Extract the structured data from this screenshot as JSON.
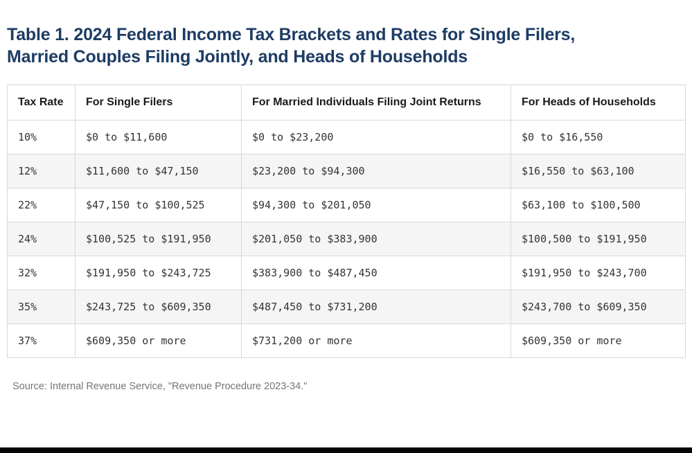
{
  "header": {
    "title_lines": [
      "Table 1. 2024 Federal Income Tax Brackets and Rates for Single Filers,",
      "Married Couples Filing Jointly, and Heads of Households"
    ]
  },
  "footer": {
    "source": "Source: Internal Revenue Service, \"Revenue Procedure 2023-34.\""
  },
  "colors": {
    "title_text": "#1d3c64",
    "header_text": "#1a1a1a",
    "cell_text": "#333333",
    "row_alt_background": "#f5f5f5",
    "table_border": "#d8d8d8",
    "source_text": "#757575",
    "bottom_bar": "#060606"
  },
  "chart_data": {
    "type": "table",
    "title": "Table 1. 2024 Federal Income Tax Brackets and Rates for Single Filers, Married Couples Filing Jointly, and Heads of Households",
    "columns": [
      "Tax Rate",
      "For Single Filers",
      "For Married Individuals Filing Joint Returns",
      "For Heads of Households"
    ],
    "rows": [
      [
        "10%",
        "$0 to $11,600",
        "$0 to $23,200",
        "$0 to $16,550"
      ],
      [
        "12%",
        "$11,600 to $47,150",
        "$23,200 to $94,300",
        "$16,550 to $63,100"
      ],
      [
        "22%",
        "$47,150 to $100,525",
        "$94,300 to $201,050",
        "$63,100 to $100,500"
      ],
      [
        "24%",
        "$100,525 to $191,950",
        "$201,050 to $383,900",
        "$100,500 to $191,950"
      ],
      [
        "32%",
        "$191,950 to $243,725",
        "$383,900 to $487,450",
        "$191,950 to $243,700"
      ],
      [
        "35%",
        "$243,725 to $609,350",
        "$487,450 to $731,200",
        "$243,700 to $609,350"
      ],
      [
        "37%",
        "$609,350 or more",
        "$731,200 or more",
        "$609,350 or more"
      ]
    ],
    "source": "Source: Internal Revenue Service, \"Revenue Procedure 2023-34.\""
  }
}
